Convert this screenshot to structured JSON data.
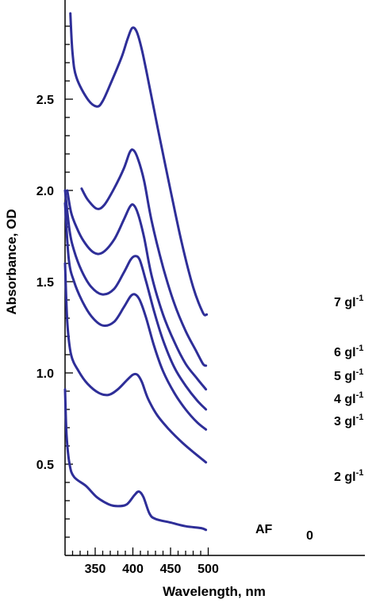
{
  "chart_data": {
    "type": "line",
    "title": "",
    "xlabel": "Wavelength, nm",
    "ylabel": "Absorbance, OD",
    "xlim": [
      310,
      510
    ],
    "ylim": [
      0,
      2.95
    ],
    "x_ticks": [
      "350",
      "400",
      "450",
      "500"
    ],
    "y_ticks": [
      "0.5",
      "1.0",
      "1.5",
      "2.0",
      "2.5"
    ],
    "line_color": "#2e2e98",
    "series": [
      {
        "label_main": "7 gl",
        "label_sup": "-1",
        "points": [
          [
            317,
            2.97
          ],
          [
            320,
            2.75
          ],
          [
            325,
            2.62
          ],
          [
            340,
            2.5
          ],
          [
            352,
            2.46
          ],
          [
            360,
            2.49
          ],
          [
            372,
            2.6
          ],
          [
            385,
            2.73
          ],
          [
            393,
            2.83
          ],
          [
            399,
            2.89
          ],
          [
            405,
            2.87
          ],
          [
            412,
            2.77
          ],
          [
            422,
            2.57
          ],
          [
            435,
            2.3
          ],
          [
            450,
            2.0
          ],
          [
            465,
            1.71
          ],
          [
            480,
            1.47
          ],
          [
            493,
            1.33
          ],
          [
            498,
            1.32
          ]
        ]
      },
      {
        "label_main": "6 gl",
        "label_sup": "-1",
        "points": [
          [
            332,
            2.01
          ],
          [
            340,
            1.95
          ],
          [
            352,
            1.9
          ],
          [
            362,
            1.92
          ],
          [
            375,
            2.01
          ],
          [
            388,
            2.12
          ],
          [
            396,
            2.21
          ],
          [
            401,
            2.22
          ],
          [
            407,
            2.17
          ],
          [
            415,
            2.05
          ],
          [
            425,
            1.83
          ],
          [
            440,
            1.58
          ],
          [
            455,
            1.38
          ],
          [
            470,
            1.23
          ],
          [
            484,
            1.12
          ],
          [
            493,
            1.05
          ],
          [
            497,
            1.04
          ]
        ]
      },
      {
        "label_main": "5 gl",
        "label_sup": "-1",
        "points": [
          [
            313,
            2.0
          ],
          [
            318,
            1.88
          ],
          [
            325,
            1.8
          ],
          [
            335,
            1.72
          ],
          [
            348,
            1.66
          ],
          [
            360,
            1.66
          ],
          [
            375,
            1.73
          ],
          [
            388,
            1.84
          ],
          [
            396,
            1.91
          ],
          [
            401,
            1.92
          ],
          [
            407,
            1.87
          ],
          [
            415,
            1.74
          ],
          [
            425,
            1.53
          ],
          [
            440,
            1.32
          ],
          [
            455,
            1.17
          ],
          [
            470,
            1.05
          ],
          [
            485,
            0.97
          ],
          [
            497,
            0.91
          ]
        ]
      },
      {
        "label_main": "4 gl",
        "label_sup": "-1",
        "points": [
          [
            310,
            2.0
          ],
          [
            316,
            1.78
          ],
          [
            322,
            1.67
          ],
          [
            332,
            1.56
          ],
          [
            345,
            1.47
          ],
          [
            360,
            1.43
          ],
          [
            375,
            1.46
          ],
          [
            388,
            1.55
          ],
          [
            397,
            1.62
          ],
          [
            403,
            1.64
          ],
          [
            409,
            1.62
          ],
          [
            417,
            1.51
          ],
          [
            428,
            1.34
          ],
          [
            440,
            1.18
          ],
          [
            455,
            1.03
          ],
          [
            470,
            0.93
          ],
          [
            485,
            0.85
          ],
          [
            497,
            0.8
          ]
        ]
      },
      {
        "label_main": "3 gl",
        "label_sup": "-1",
        "points": [
          [
            310,
            1.93
          ],
          [
            315,
            1.62
          ],
          [
            322,
            1.5
          ],
          [
            332,
            1.4
          ],
          [
            345,
            1.31
          ],
          [
            360,
            1.26
          ],
          [
            375,
            1.28
          ],
          [
            388,
            1.36
          ],
          [
            397,
            1.42
          ],
          [
            403,
            1.43
          ],
          [
            409,
            1.4
          ],
          [
            417,
            1.31
          ],
          [
            428,
            1.15
          ],
          [
            440,
            1.01
          ],
          [
            455,
            0.89
          ],
          [
            470,
            0.8
          ],
          [
            485,
            0.73
          ],
          [
            497,
            0.69
          ]
        ]
      },
      {
        "label_main": "2 gl",
        "label_sup": "-1",
        "points": [
          [
            310,
            1.6
          ],
          [
            313,
            1.28
          ],
          [
            318,
            1.1
          ],
          [
            328,
            1.01
          ],
          [
            340,
            0.94
          ],
          [
            355,
            0.89
          ],
          [
            368,
            0.88
          ],
          [
            380,
            0.91
          ],
          [
            392,
            0.96
          ],
          [
            400,
            0.99
          ],
          [
            406,
            0.99
          ],
          [
            412,
            0.95
          ],
          [
            420,
            0.86
          ],
          [
            432,
            0.77
          ],
          [
            448,
            0.69
          ],
          [
            465,
            0.62
          ],
          [
            482,
            0.56
          ],
          [
            497,
            0.51
          ]
        ]
      },
      {
        "label_main": "AF",
        "label_sup": "",
        "points": [
          [
            310,
            0.91
          ],
          [
            312,
            0.66
          ],
          [
            316,
            0.5
          ],
          [
            322,
            0.43
          ],
          [
            338,
            0.38
          ],
          [
            352,
            0.32
          ],
          [
            368,
            0.28
          ],
          [
            380,
            0.27
          ],
          [
            392,
            0.28
          ],
          [
            402,
            0.33
          ],
          [
            408,
            0.35
          ],
          [
            414,
            0.32
          ],
          [
            422,
            0.23
          ],
          [
            430,
            0.2
          ],
          [
            450,
            0.18
          ],
          [
            470,
            0.16
          ],
          [
            490,
            0.15
          ],
          [
            497,
            0.14
          ]
        ]
      }
    ],
    "extra_label": "0"
  }
}
